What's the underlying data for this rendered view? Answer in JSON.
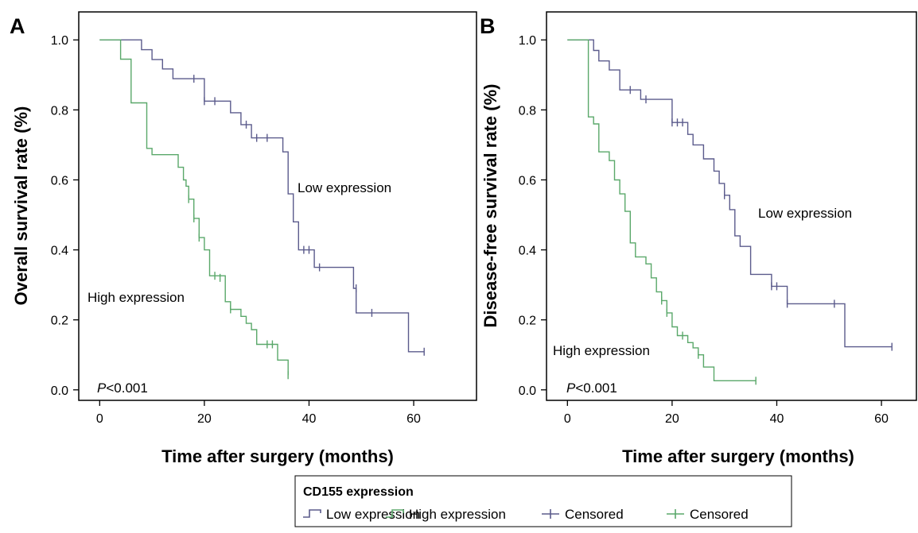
{
  "colors": {
    "low": "#5b5b8c",
    "high": "#5aa86a",
    "axis": "#000000"
  },
  "chart_data": [
    {
      "panel": "A",
      "type": "line",
      "xlabel": "Time after surgery (months)",
      "ylabel": "Overall survival rate (%)",
      "xlim": [
        -4,
        72
      ],
      "ylim": [
        -0.03,
        1.08
      ],
      "xticks": [
        0,
        20,
        40,
        60
      ],
      "yticks": [
        "0.0",
        "0.2",
        "0.4",
        "0.6",
        "0.8",
        "1.0"
      ],
      "annotations": {
        "low": "Low expression",
        "high": "High expression",
        "p_italic": "P",
        "p_rest": "<0.001"
      },
      "series": [
        {
          "name": "Low expression",
          "color_key": "low",
          "steps": [
            [
              0,
              1.0
            ],
            [
              4,
              1.0
            ],
            [
              8,
              0.972
            ],
            [
              10,
              0.944
            ],
            [
              12,
              0.917
            ],
            [
              14,
              0.889
            ],
            [
              18,
              0.889
            ],
            [
              20,
              0.825
            ],
            [
              25,
              0.792
            ],
            [
              27,
              0.758
            ],
            [
              29,
              0.72
            ],
            [
              33,
              0.72
            ],
            [
              35,
              0.68
            ],
            [
              36,
              0.56
            ],
            [
              37,
              0.48
            ],
            [
              38,
              0.4
            ],
            [
              40,
              0.4
            ],
            [
              41,
              0.35
            ],
            [
              48,
              0.35
            ],
            [
              48.5,
              0.29
            ],
            [
              49,
              0.22
            ],
            [
              59,
              0.22
            ],
            [
              59,
              0.109
            ],
            [
              62,
              0.109
            ]
          ],
          "censored": [
            [
              18,
              0.889
            ],
            [
              20,
              0.825
            ],
            [
              22,
              0.825
            ],
            [
              28,
              0.758
            ],
            [
              30,
              0.72
            ],
            [
              32,
              0.72
            ],
            [
              39,
              0.4
            ],
            [
              40,
              0.4
            ],
            [
              42,
              0.35
            ],
            [
              49,
              0.29
            ],
            [
              52,
              0.22
            ],
            [
              62,
              0.109
            ]
          ]
        },
        {
          "name": "High expression",
          "color_key": "high",
          "steps": [
            [
              0,
              1.0
            ],
            [
              4,
              1.0
            ],
            [
              4,
              0.945
            ],
            [
              6,
              0.945
            ],
            [
              6,
              0.82
            ],
            [
              9,
              0.82
            ],
            [
              9,
              0.69
            ],
            [
              10,
              0.672
            ],
            [
              14,
              0.672
            ],
            [
              15,
              0.636
            ],
            [
              16,
              0.6
            ],
            [
              16.5,
              0.582
            ],
            [
              17,
              0.545
            ],
            [
              18,
              0.545
            ],
            [
              18,
              0.49
            ],
            [
              19,
              0.49
            ],
            [
              19,
              0.435
            ],
            [
              20,
              0.435
            ],
            [
              20,
              0.4
            ],
            [
              21,
              0.326
            ],
            [
              22,
              0.326
            ],
            [
              24,
              0.288
            ],
            [
              24,
              0.252
            ],
            [
              25,
              0.23
            ],
            [
              27,
              0.21
            ],
            [
              28,
              0.19
            ],
            [
              29,
              0.172
            ],
            [
              30,
              0.13
            ],
            [
              33,
              0.13
            ],
            [
              34,
              0.085
            ],
            [
              36,
              0.085
            ],
            [
              36,
              0.042
            ]
          ],
          "censored": [
            [
              17,
              0.545
            ],
            [
              18,
              0.49
            ],
            [
              19,
              0.435
            ],
            [
              22,
              0.326
            ],
            [
              23,
              0.32
            ],
            [
              25,
              0.23
            ],
            [
              32,
              0.13
            ],
            [
              33,
              0.13
            ],
            [
              36,
              0.042
            ]
          ]
        }
      ]
    },
    {
      "panel": "B",
      "type": "line",
      "xlabel": "Time after surgery (months)",
      "ylabel": "Disease-free survival rate (%)",
      "xlim": [
        -4,
        72
      ],
      "ylim": [
        -0.03,
        1.08
      ],
      "xticks": [
        0,
        20,
        40,
        60
      ],
      "yticks": [
        "0.0",
        "0.2",
        "0.4",
        "0.6",
        "0.8",
        "1.0"
      ],
      "annotations": {
        "low": "Low expression",
        "high": "High expression",
        "p_italic": "P",
        "p_rest": "<0.001"
      },
      "series": [
        {
          "name": "Low expression",
          "color_key": "low",
          "steps": [
            [
              0,
              1.0
            ],
            [
              5,
              1.0
            ],
            [
              5,
              0.97
            ],
            [
              6,
              0.94
            ],
            [
              8,
              0.914
            ],
            [
              10,
              0.857
            ],
            [
              12,
              0.857
            ],
            [
              14,
              0.83
            ],
            [
              20,
              0.83
            ],
            [
              20,
              0.764
            ],
            [
              22,
              0.764
            ],
            [
              23,
              0.73
            ],
            [
              24,
              0.7
            ],
            [
              26,
              0.66
            ],
            [
              28,
              0.625
            ],
            [
              29,
              0.59
            ],
            [
              30,
              0.556
            ],
            [
              31,
              0.515
            ],
            [
              32,
              0.44
            ],
            [
              33,
              0.41
            ],
            [
              35,
              0.33
            ],
            [
              39,
              0.33
            ],
            [
              39,
              0.296
            ],
            [
              41,
              0.296
            ],
            [
              42,
              0.246
            ],
            [
              51,
              0.246
            ],
            [
              53,
              0.246
            ],
            [
              53,
              0.123
            ],
            [
              62,
              0.123
            ]
          ],
          "censored": [
            [
              12,
              0.857
            ],
            [
              15,
              0.83
            ],
            [
              20,
              0.764
            ],
            [
              21,
              0.764
            ],
            [
              22,
              0.764
            ],
            [
              30,
              0.556
            ],
            [
              39,
              0.296
            ],
            [
              40,
              0.296
            ],
            [
              42,
              0.246
            ],
            [
              51,
              0.246
            ],
            [
              62,
              0.123
            ]
          ]
        },
        {
          "name": "High expression",
          "color_key": "high",
          "steps": [
            [
              0,
              1.0
            ],
            [
              4,
              1.0
            ],
            [
              4,
              0.78
            ],
            [
              5,
              0.76
            ],
            [
              6,
              0.68
            ],
            [
              8,
              0.655
            ],
            [
              9,
              0.6
            ],
            [
              10,
              0.56
            ],
            [
              11,
              0.51
            ],
            [
              12,
              0.51
            ],
            [
              12,
              0.42
            ],
            [
              13,
              0.38
            ],
            [
              15,
              0.36
            ],
            [
              16,
              0.32
            ],
            [
              17,
              0.28
            ],
            [
              18,
              0.255
            ],
            [
              19,
              0.22
            ],
            [
              20,
              0.18
            ],
            [
              21,
              0.155
            ],
            [
              23,
              0.135
            ],
            [
              24,
              0.12
            ],
            [
              25,
              0.1
            ],
            [
              26,
              0.065
            ],
            [
              28,
              0.026
            ],
            [
              36,
              0.026
            ]
          ],
          "censored": [
            [
              18,
              0.255
            ],
            [
              19,
              0.22
            ],
            [
              22,
              0.155
            ],
            [
              25,
              0.1
            ],
            [
              36,
              0.026
            ]
          ]
        }
      ]
    }
  ],
  "legend": {
    "title": "CD155 expression",
    "items": [
      {
        "label": "Low expression",
        "kind": "step",
        "color_key": "low"
      },
      {
        "label": "High expression",
        "kind": "step",
        "color_key": "high"
      },
      {
        "label": "Censored",
        "kind": "tick",
        "color_key": "low"
      },
      {
        "label": "Censored",
        "kind": "tick",
        "color_key": "high"
      }
    ]
  }
}
